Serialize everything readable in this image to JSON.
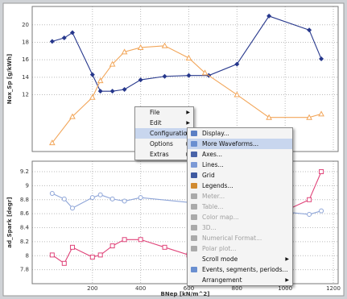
{
  "charts": [
    {
      "type": "line",
      "y_label": "Nox_Sp [g/kWh]",
      "xlim": [
        -50,
        1220
      ],
      "xticks": [
        200,
        400,
        600,
        800,
        1000,
        1200
      ],
      "ylim": [
        5.5,
        22.1
      ],
      "yticks": [
        12,
        14,
        16,
        18,
        20
      ],
      "grid": true,
      "series": [
        {
          "color": "#26378c",
          "marker": "diamond",
          "x": [
            33,
            83,
            117,
            200,
            233,
            283,
            333,
            400,
            500,
            600,
            683,
            800,
            933,
            1100,
            1150
          ],
          "values": [
            18.1,
            18.5,
            19.1,
            14.3,
            12.4,
            12.4,
            12.6,
            13.7,
            14.1,
            14.2,
            14.2,
            15.5,
            21,
            19.4,
            16.1
          ]
        },
        {
          "color": "#f2a65a",
          "marker": "triangle",
          "x": [
            33,
            117,
            200,
            233,
            283,
            333,
            400,
            500,
            600,
            667,
            800,
            933,
            1100,
            1150
          ],
          "values": [
            6.5,
            9.5,
            11.7,
            13.6,
            15.5,
            16.9,
            17.4,
            17.6,
            16.2,
            14.5,
            12,
            9.4,
            9.4,
            9.8
          ]
        }
      ]
    },
    {
      "type": "line",
      "y_label": "ad_Spark [degr]",
      "x_label": "BNep [kN/m^2]",
      "xlim": [
        -50,
        1220
      ],
      "xticks": [
        200,
        400,
        600,
        800,
        1000,
        1200
      ],
      "ylim": [
        7.6,
        9.35
      ],
      "yticks": [
        7.8,
        8.0,
        8.2,
        8.4,
        8.6,
        8.8,
        9.0,
        9.2
      ],
      "grid": true,
      "series": [
        {
          "color": "#8ea5d8",
          "marker": "circle",
          "x": [
            33,
            83,
            117,
            200,
            233,
            283,
            333,
            400,
            1100,
            1150
          ],
          "values": [
            8.89,
            8.81,
            8.68,
            8.83,
            8.87,
            8.81,
            8.78,
            8.83,
            8.59,
            8.64
          ]
        },
        {
          "color": "#e0457a",
          "marker": "square",
          "x": [
            33,
            83,
            117,
            200,
            233,
            283,
            333,
            400,
            500,
            600,
            1100,
            1150
          ],
          "values": [
            8.01,
            7.89,
            8.12,
            7.98,
            8.01,
            8.14,
            8.23,
            8.23,
            8.12,
            8.01,
            8.8,
            9.2
          ]
        }
      ]
    }
  ],
  "context_menu": {
    "items": [
      {
        "label": "File",
        "submenu": true
      },
      {
        "label": "Edit",
        "submenu": true
      },
      {
        "label": "Configuration",
        "submenu": true,
        "highlighted": true
      },
      {
        "label": "Options",
        "submenu": true
      },
      {
        "label": "Extras",
        "submenu": true
      }
    ]
  },
  "submenu": {
    "items": [
      {
        "label": "Display..."
      },
      {
        "label": "More Waveforms...",
        "highlighted": true
      },
      {
        "label": "Axes..."
      },
      {
        "label": "Lines..."
      },
      {
        "label": "Grid"
      },
      {
        "label": "Legends..."
      },
      {
        "label": "Meter...",
        "disabled": true
      },
      {
        "label": "Table...",
        "disabled": true
      },
      {
        "label": "Color map...",
        "disabled": true
      },
      {
        "label": "3D...",
        "disabled": true
      },
      {
        "label": "Numerical Format...",
        "disabled": true
      },
      {
        "label": "Polar plot...",
        "disabled": true
      },
      {
        "label": "Scroll mode",
        "submenu": true
      },
      {
        "label": "Events, segments, periods..."
      },
      {
        "label": "Arrangement",
        "submenu": true
      }
    ]
  }
}
